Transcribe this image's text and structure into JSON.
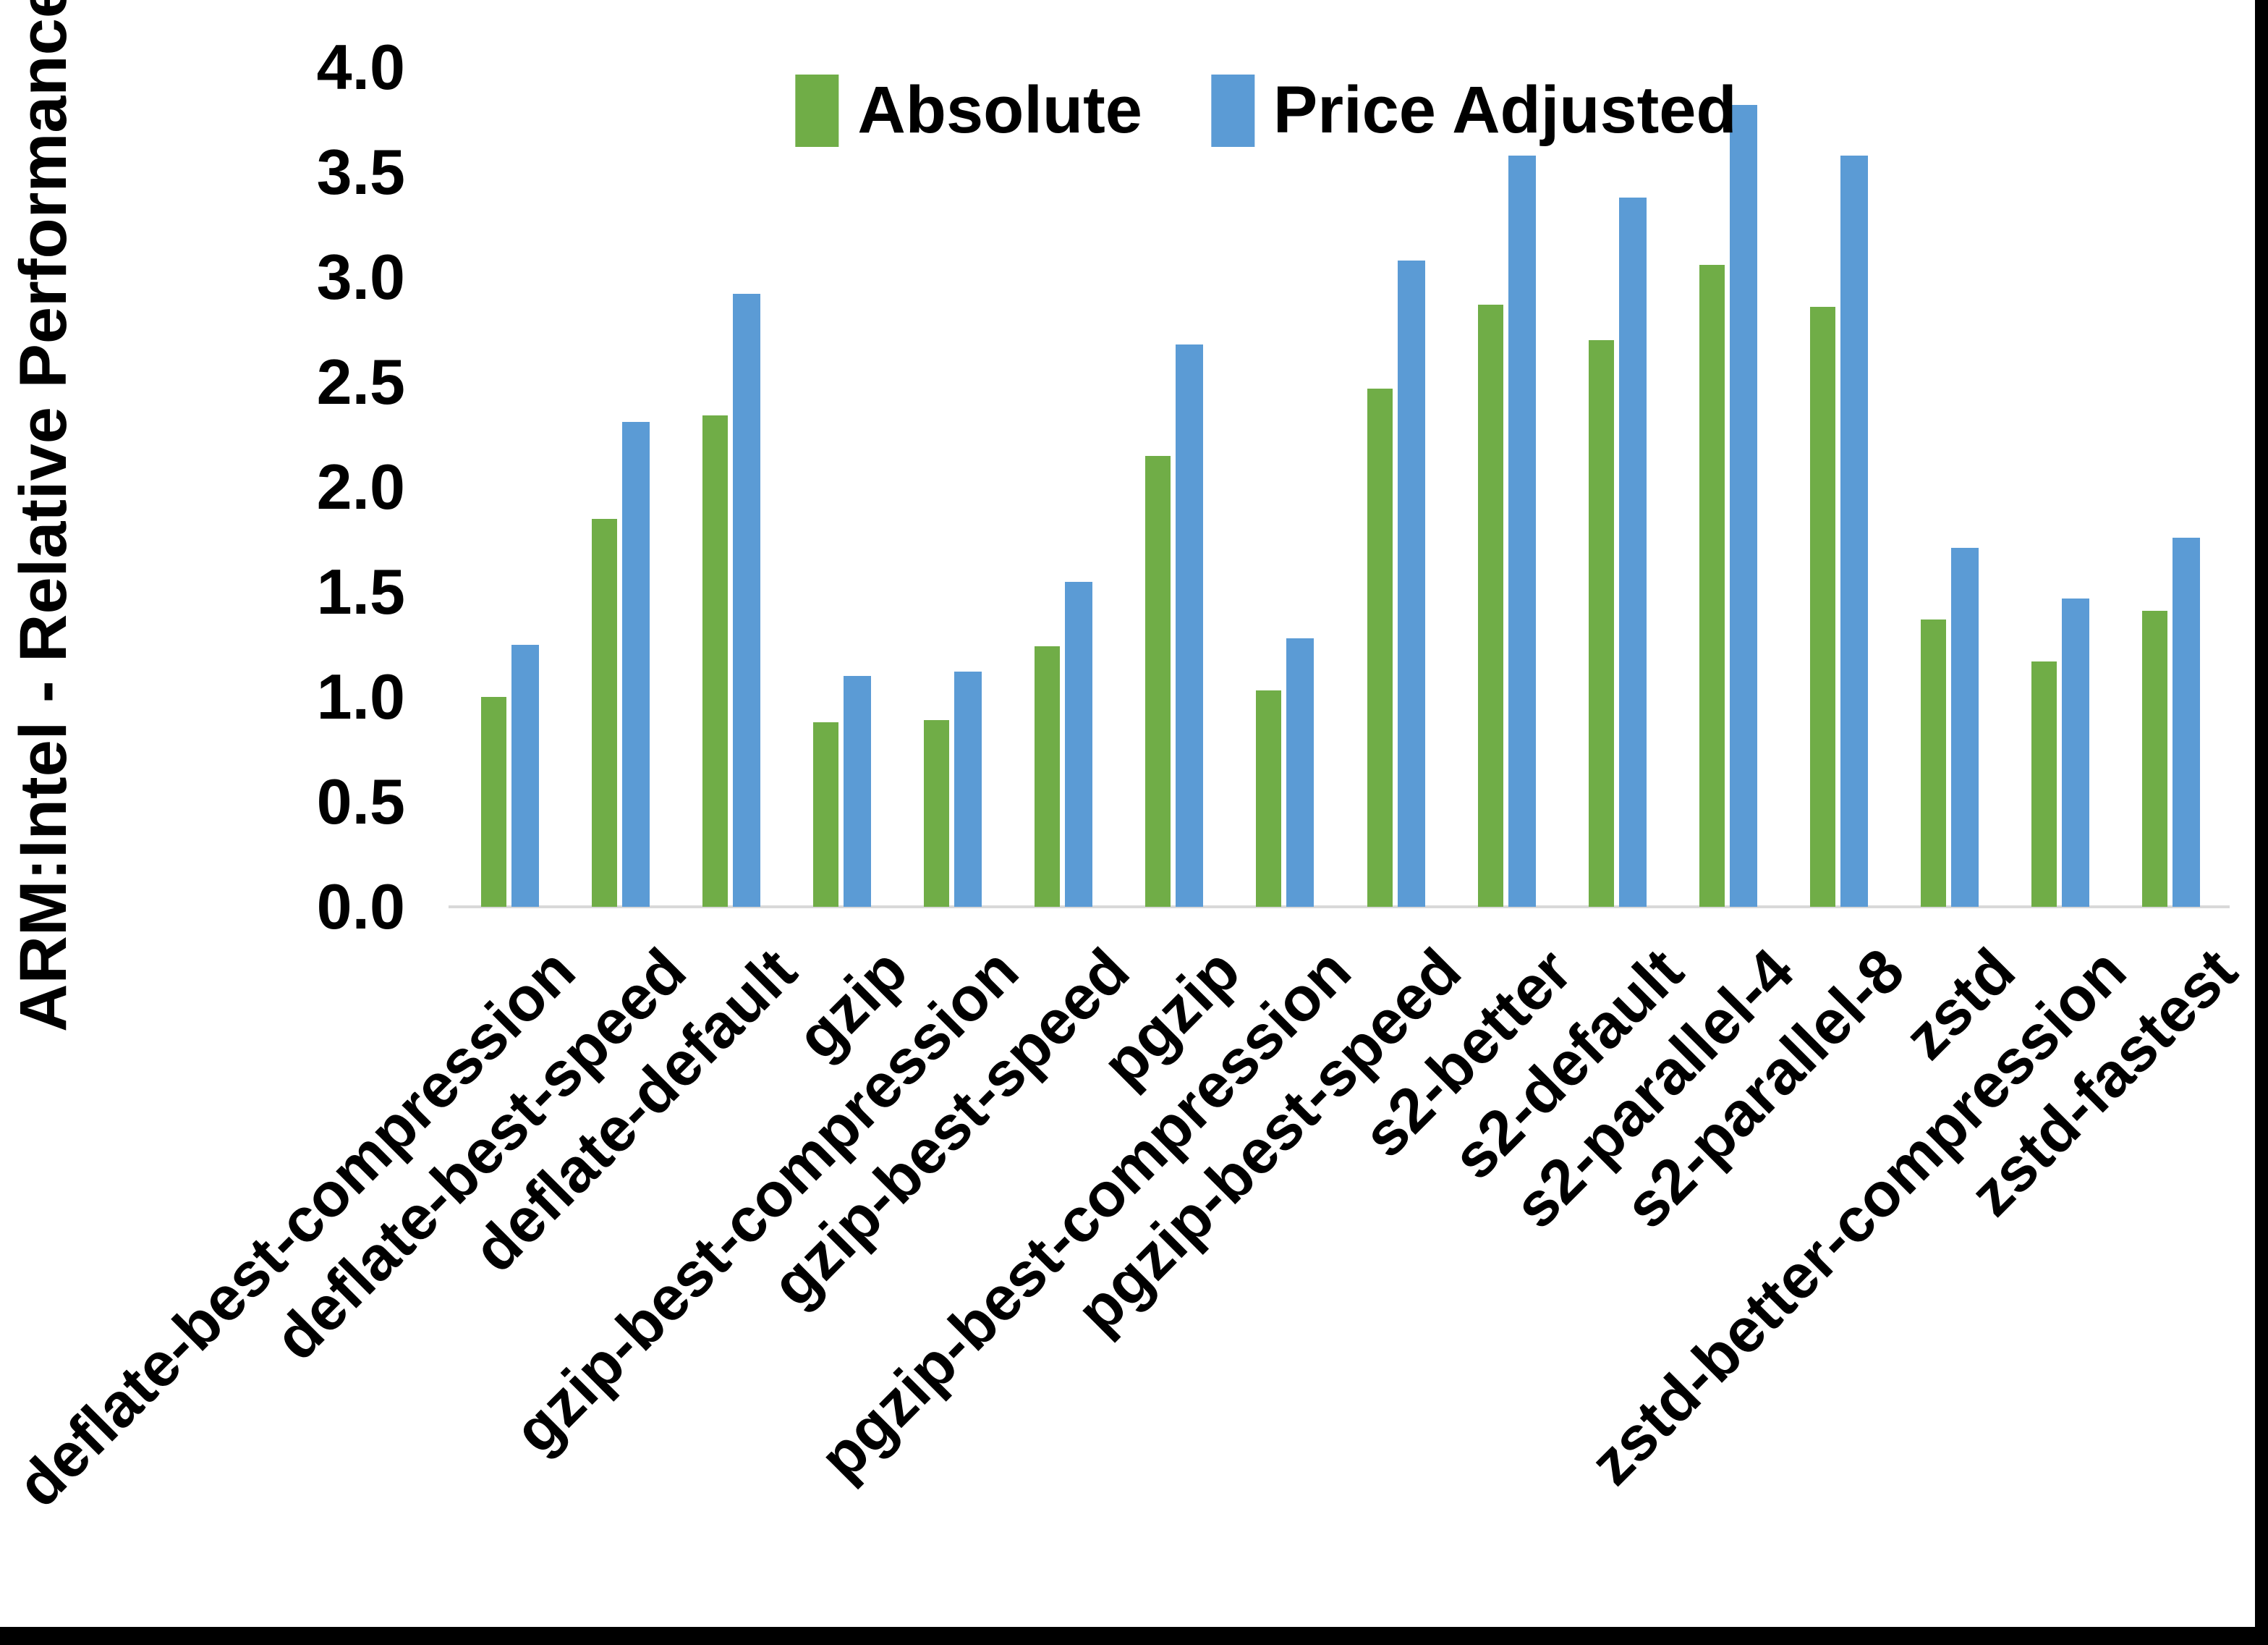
{
  "chart_data": {
    "type": "bar",
    "title": "",
    "ylabel": "ARM:Intel - Relative Performance",
    "xlabel": "",
    "ylim": [
      0.0,
      4.0
    ],
    "ytick_step": 0.5,
    "yticks": [
      "0.0",
      "0.5",
      "1.0",
      "1.5",
      "2.0",
      "2.5",
      "3.0",
      "3.5",
      "4.0"
    ],
    "grid": false,
    "legend_position": "top-center",
    "axis_line_color": "#D9D9D9",
    "text_color": "#000000",
    "background_color": "#ffffff",
    "frame_color": "#000000",
    "categories": [
      "deflate-best-compression",
      "deflate-best-speed",
      "deflate-default",
      "gzip",
      "gzip-best-compression",
      "gzip-best-speed",
      "pgzip",
      "pgzip-best-compression",
      "pgzip-best-speed",
      "s2-better",
      "s2-default",
      "s2-parallel-4",
      "s2-parallel-8",
      "zstd",
      "zstd-better-compression",
      "zstd-fastest"
    ],
    "series": [
      {
        "name": "Absolute",
        "color": "#70AD47",
        "values": [
          1.0,
          1.85,
          2.34,
          0.88,
          0.89,
          1.24,
          2.15,
          1.03,
          2.47,
          2.87,
          2.7,
          3.06,
          2.86,
          1.37,
          1.17,
          1.41
        ]
      },
      {
        "name": "Price Adjusted",
        "color": "#5B9BD5",
        "values": [
          1.25,
          2.31,
          2.92,
          1.1,
          1.12,
          1.55,
          2.68,
          1.28,
          3.08,
          3.58,
          3.38,
          3.82,
          3.58,
          1.71,
          1.47,
          1.76
        ]
      }
    ]
  }
}
